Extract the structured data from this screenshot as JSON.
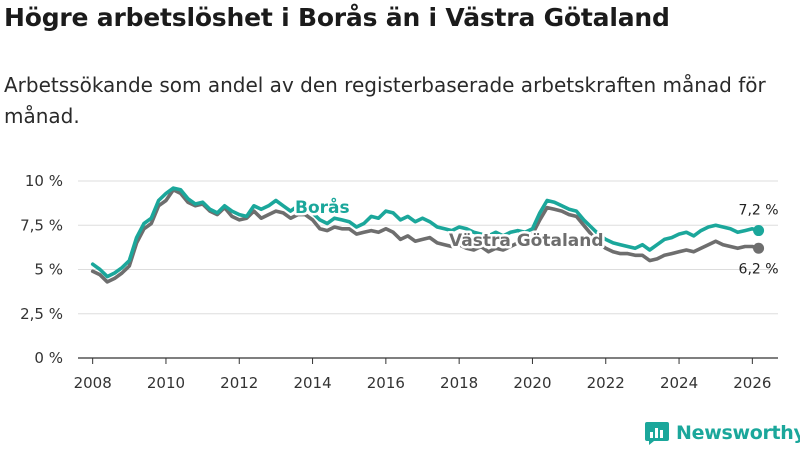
{
  "title": "Högre arbetslöshet i Borås än i Västra Götaland",
  "subtitle": "Arbetssökande som andel av den registerbaserade arbetskraften månad för månad.",
  "brand": {
    "name": "Newsworthy",
    "icon": "chart-logo-icon"
  },
  "colors": {
    "boras": "#1ba79b",
    "vg": "#6e6e6e",
    "grid": "#dddddd",
    "axis": "#333333"
  },
  "chart_data": {
    "type": "line",
    "title": "Högre arbetslöshet i Borås än i Västra Götaland",
    "xlabel": "",
    "ylabel": "",
    "xlim": [
      2007.6,
      2026.7
    ],
    "ylim": [
      0,
      10
    ],
    "x_ticks": [
      2008,
      2010,
      2012,
      2014,
      2016,
      2018,
      2020,
      2022,
      2024,
      2026
    ],
    "x_tick_labels": [
      "2008",
      "2010",
      "2012",
      "2014",
      "2016",
      "2018",
      "2020",
      "2022",
      "2024",
      "2026"
    ],
    "y_ticks": [
      0,
      2.5,
      5,
      7.5,
      10
    ],
    "y_tick_labels": [
      "0 %",
      "2,5 %",
      "5 %",
      "7,5 %",
      "10 %"
    ],
    "grid": true,
    "series": [
      {
        "id": "boras",
        "name": "Borås",
        "label": "Borås",
        "end_label": "7,2 %",
        "end_value": 7.2,
        "points": [
          [
            2008.0,
            5.3
          ],
          [
            2008.2,
            5.0
          ],
          [
            2008.4,
            4.6
          ],
          [
            2008.6,
            4.8
          ],
          [
            2008.8,
            5.1
          ],
          [
            2009.0,
            5.5
          ],
          [
            2009.2,
            6.8
          ],
          [
            2009.4,
            7.6
          ],
          [
            2009.6,
            7.9
          ],
          [
            2009.8,
            8.9
          ],
          [
            2010.0,
            9.3
          ],
          [
            2010.2,
            9.6
          ],
          [
            2010.4,
            9.5
          ],
          [
            2010.6,
            9.0
          ],
          [
            2010.8,
            8.7
          ],
          [
            2011.0,
            8.8
          ],
          [
            2011.2,
            8.4
          ],
          [
            2011.4,
            8.2
          ],
          [
            2011.6,
            8.6
          ],
          [
            2011.8,
            8.3
          ],
          [
            2012.0,
            8.1
          ],
          [
            2012.2,
            8.0
          ],
          [
            2012.4,
            8.6
          ],
          [
            2012.6,
            8.4
          ],
          [
            2012.8,
            8.6
          ],
          [
            2013.0,
            8.9
          ],
          [
            2013.2,
            8.6
          ],
          [
            2013.4,
            8.3
          ],
          [
            2013.6,
            8.6
          ],
          [
            2013.8,
            8.4
          ],
          [
            2014.0,
            8.2
          ],
          [
            2014.2,
            7.8
          ],
          [
            2014.4,
            7.6
          ],
          [
            2014.6,
            7.9
          ],
          [
            2014.8,
            7.8
          ],
          [
            2015.0,
            7.7
          ],
          [
            2015.2,
            7.4
          ],
          [
            2015.4,
            7.6
          ],
          [
            2015.6,
            8.0
          ],
          [
            2015.8,
            7.9
          ],
          [
            2016.0,
            8.3
          ],
          [
            2016.2,
            8.2
          ],
          [
            2016.4,
            7.8
          ],
          [
            2016.6,
            8.0
          ],
          [
            2016.8,
            7.7
          ],
          [
            2017.0,
            7.9
          ],
          [
            2017.2,
            7.7
          ],
          [
            2017.4,
            7.4
          ],
          [
            2017.6,
            7.3
          ],
          [
            2017.8,
            7.2
          ],
          [
            2018.0,
            7.4
          ],
          [
            2018.2,
            7.3
          ],
          [
            2018.4,
            7.1
          ],
          [
            2018.6,
            7.0
          ],
          [
            2018.8,
            6.9
          ],
          [
            2019.0,
            7.1
          ],
          [
            2019.2,
            6.9
          ],
          [
            2019.4,
            7.1
          ],
          [
            2019.6,
            7.2
          ],
          [
            2019.8,
            7.1
          ],
          [
            2020.0,
            7.3
          ],
          [
            2020.2,
            8.2
          ],
          [
            2020.4,
            8.9
          ],
          [
            2020.6,
            8.8
          ],
          [
            2020.8,
            8.6
          ],
          [
            2021.0,
            8.4
          ],
          [
            2021.2,
            8.3
          ],
          [
            2021.4,
            7.8
          ],
          [
            2021.6,
            7.4
          ],
          [
            2021.8,
            7.0
          ],
          [
            2022.0,
            6.7
          ],
          [
            2022.2,
            6.5
          ],
          [
            2022.4,
            6.4
          ],
          [
            2022.6,
            6.3
          ],
          [
            2022.8,
            6.2
          ],
          [
            2023.0,
            6.4
          ],
          [
            2023.2,
            6.1
          ],
          [
            2023.4,
            6.4
          ],
          [
            2023.6,
            6.7
          ],
          [
            2023.8,
            6.8
          ],
          [
            2024.0,
            7.0
          ],
          [
            2024.2,
            7.1
          ],
          [
            2024.4,
            6.9
          ],
          [
            2024.6,
            7.2
          ],
          [
            2024.8,
            7.4
          ],
          [
            2025.0,
            7.5
          ],
          [
            2025.2,
            7.4
          ],
          [
            2025.4,
            7.3
          ],
          [
            2025.6,
            7.1
          ],
          [
            2025.8,
            7.2
          ],
          [
            2026.0,
            7.3
          ],
          [
            2026.17,
            7.2
          ]
        ]
      },
      {
        "id": "vg",
        "name": "Västra Götaland",
        "label": "Västra Götaland",
        "end_label": "6,2 %",
        "end_value": 6.2,
        "points": [
          [
            2008.0,
            4.9
          ],
          [
            2008.2,
            4.7
          ],
          [
            2008.4,
            4.3
          ],
          [
            2008.6,
            4.5
          ],
          [
            2008.8,
            4.8
          ],
          [
            2009.0,
            5.2
          ],
          [
            2009.2,
            6.5
          ],
          [
            2009.4,
            7.3
          ],
          [
            2009.6,
            7.6
          ],
          [
            2009.8,
            8.6
          ],
          [
            2010.0,
            8.9
          ],
          [
            2010.2,
            9.5
          ],
          [
            2010.4,
            9.3
          ],
          [
            2010.6,
            8.8
          ],
          [
            2010.8,
            8.6
          ],
          [
            2011.0,
            8.7
          ],
          [
            2011.2,
            8.3
          ],
          [
            2011.4,
            8.1
          ],
          [
            2011.6,
            8.5
          ],
          [
            2011.8,
            8.0
          ],
          [
            2012.0,
            7.8
          ],
          [
            2012.2,
            7.9
          ],
          [
            2012.4,
            8.3
          ],
          [
            2012.6,
            7.9
          ],
          [
            2012.8,
            8.1
          ],
          [
            2013.0,
            8.3
          ],
          [
            2013.2,
            8.2
          ],
          [
            2013.4,
            7.9
          ],
          [
            2013.6,
            8.1
          ],
          [
            2013.8,
            8.1
          ],
          [
            2014.0,
            7.8
          ],
          [
            2014.2,
            7.3
          ],
          [
            2014.4,
            7.2
          ],
          [
            2014.6,
            7.4
          ],
          [
            2014.8,
            7.3
          ],
          [
            2015.0,
            7.3
          ],
          [
            2015.2,
            7.0
          ],
          [
            2015.4,
            7.1
          ],
          [
            2015.6,
            7.2
          ],
          [
            2015.8,
            7.1
          ],
          [
            2016.0,
            7.3
          ],
          [
            2016.2,
            7.1
          ],
          [
            2016.4,
            6.7
          ],
          [
            2016.6,
            6.9
          ],
          [
            2016.8,
            6.6
          ],
          [
            2017.0,
            6.7
          ],
          [
            2017.2,
            6.8
          ],
          [
            2017.4,
            6.5
          ],
          [
            2017.6,
            6.4
          ],
          [
            2017.8,
            6.3
          ],
          [
            2018.0,
            6.4
          ],
          [
            2018.2,
            6.2
          ],
          [
            2018.4,
            6.1
          ],
          [
            2018.6,
            6.3
          ],
          [
            2018.8,
            6.0
          ],
          [
            2019.0,
            6.2
          ],
          [
            2019.2,
            6.1
          ],
          [
            2019.4,
            6.3
          ],
          [
            2019.6,
            6.5
          ],
          [
            2019.8,
            6.6
          ],
          [
            2020.0,
            7.0
          ],
          [
            2020.2,
            7.8
          ],
          [
            2020.4,
            8.5
          ],
          [
            2020.6,
            8.4
          ],
          [
            2020.8,
            8.3
          ],
          [
            2021.0,
            8.1
          ],
          [
            2021.2,
            8.0
          ],
          [
            2021.4,
            7.5
          ],
          [
            2021.6,
            7.0
          ],
          [
            2021.8,
            6.5
          ],
          [
            2022.0,
            6.2
          ],
          [
            2022.2,
            6.0
          ],
          [
            2022.4,
            5.9
          ],
          [
            2022.6,
            5.9
          ],
          [
            2022.8,
            5.8
          ],
          [
            2023.0,
            5.8
          ],
          [
            2023.2,
            5.5
          ],
          [
            2023.4,
            5.6
          ],
          [
            2023.6,
            5.8
          ],
          [
            2023.8,
            5.9
          ],
          [
            2024.0,
            6.0
          ],
          [
            2024.2,
            6.1
          ],
          [
            2024.4,
            6.0
          ],
          [
            2024.6,
            6.2
          ],
          [
            2024.8,
            6.4
          ],
          [
            2025.0,
            6.6
          ],
          [
            2025.2,
            6.4
          ],
          [
            2025.4,
            6.3
          ],
          [
            2025.6,
            6.2
          ],
          [
            2025.8,
            6.3
          ],
          [
            2026.0,
            6.3
          ],
          [
            2026.17,
            6.2
          ]
        ]
      }
    ]
  }
}
